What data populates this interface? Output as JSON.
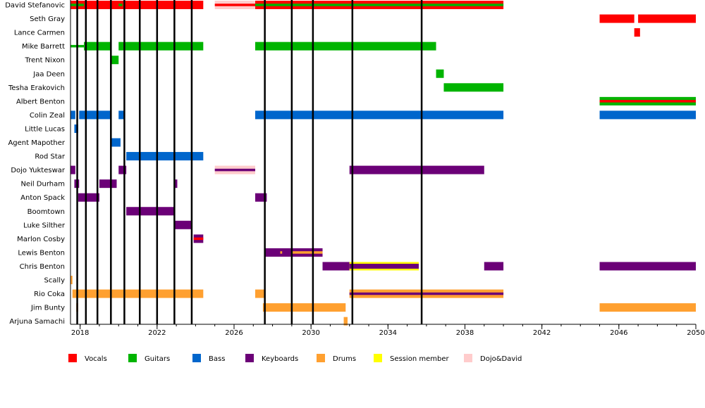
{
  "chart_data": {
    "type": "timeline",
    "xlim": [
      2017.5,
      2050
    ],
    "x_ticks": [
      2018,
      2022,
      2026,
      2030,
      2034,
      2038,
      2042,
      2046,
      2050
    ],
    "x_tick_labels": [
      "2018",
      "2022",
      "2026",
      "2030",
      "2034",
      "2038",
      "2042",
      "2046",
      "2050"
    ],
    "event_lines": [
      2017.85,
      2018.3,
      2018.9,
      2019.6,
      2020.3,
      2021.1,
      2022.0,
      2022.9,
      2023.8,
      2027.6,
      2029.0,
      2030.1,
      2032.15,
      2035.75
    ],
    "colors": {
      "Vocals": "#ff0000",
      "Guitars": "#00b400",
      "Bass": "#0066cc",
      "Keyboards": "#6b0077",
      "Drums": "#ffa030",
      "Session member": "#ffff00",
      "Dojo&David": "#ffcccc"
    },
    "legend": [
      {
        "role": "Vocals",
        "label": "Vocals"
      },
      {
        "role": "Guitars",
        "label": "Guitars"
      },
      {
        "role": "Bass",
        "label": "Bass"
      },
      {
        "role": "Keyboards",
        "label": "Keyboards"
      },
      {
        "role": "Drums",
        "label": "Drums"
      },
      {
        "role": "Session member",
        "label": "Session member"
      },
      {
        "role": "Dojo&David",
        "label": "Dojo&David"
      }
    ],
    "members": [
      {
        "name": "David Stefanovic",
        "bars": [
          {
            "start": 2017.5,
            "end": 2024.4,
            "role": "Vocals"
          },
          {
            "start": 2025.0,
            "end": 2027.1,
            "role": "Dojo&David"
          },
          {
            "start": 2025.0,
            "end": 2027.1,
            "role": "Vocals",
            "thin": true
          },
          {
            "start": 2027.1,
            "end": 2040.0,
            "role": "Vocals"
          },
          {
            "start": 2017.5,
            "end": 2018.2,
            "role": "Guitars",
            "thin": true
          },
          {
            "start": 2020.0,
            "end": 2020.2,
            "role": "Guitars",
            "thin": true
          },
          {
            "start": 2027.1,
            "end": 2040.0,
            "role": "Guitars",
            "thin": true
          }
        ]
      },
      {
        "name": "Seth Gray",
        "bars": [
          {
            "start": 2045.0,
            "end": 2046.8,
            "role": "Vocals"
          },
          {
            "start": 2047.0,
            "end": 2050.0,
            "role": "Vocals"
          }
        ]
      },
      {
        "name": "Lance Carmen",
        "bars": [
          {
            "start": 2046.8,
            "end": 2047.1,
            "role": "Vocals"
          }
        ]
      },
      {
        "name": "Mike Barrett",
        "bars": [
          {
            "start": 2017.5,
            "end": 2018.2,
            "role": "Guitars",
            "thin": true
          },
          {
            "start": 2018.2,
            "end": 2019.6,
            "role": "Guitars"
          },
          {
            "start": 2020.0,
            "end": 2024.4,
            "role": "Guitars"
          },
          {
            "start": 2027.1,
            "end": 2036.5,
            "role": "Guitars"
          }
        ]
      },
      {
        "name": "Trent Nixon",
        "bars": [
          {
            "start": 2019.6,
            "end": 2020.0,
            "role": "Guitars"
          }
        ]
      },
      {
        "name": "Jaa Deen",
        "bars": [
          {
            "start": 2036.5,
            "end": 2036.9,
            "role": "Guitars"
          }
        ]
      },
      {
        "name": "Tesha Erakovich",
        "bars": [
          {
            "start": 2036.9,
            "end": 2040.0,
            "role": "Guitars"
          }
        ]
      },
      {
        "name": "Albert Benton",
        "bars": [
          {
            "start": 2045.0,
            "end": 2050.0,
            "role": "Guitars"
          },
          {
            "start": 2045.0,
            "end": 2050.0,
            "role": "Vocals",
            "thin": true
          }
        ]
      },
      {
        "name": "Colin Zeal",
        "bars": [
          {
            "start": 2017.5,
            "end": 2017.75,
            "role": "Bass"
          },
          {
            "start": 2017.95,
            "end": 2019.6,
            "role": "Bass"
          },
          {
            "start": 2020.0,
            "end": 2020.3,
            "role": "Bass"
          },
          {
            "start": 2027.1,
            "end": 2040.0,
            "role": "Bass"
          },
          {
            "start": 2045.0,
            "end": 2050.0,
            "role": "Bass"
          }
        ]
      },
      {
        "name": "Little Lucas",
        "bars": [
          {
            "start": 2017.7,
            "end": 2017.9,
            "role": "Bass"
          }
        ]
      },
      {
        "name": "Agent Mapother",
        "bars": [
          {
            "start": 2019.6,
            "end": 2020.1,
            "role": "Bass"
          }
        ]
      },
      {
        "name": "Rod Star",
        "bars": [
          {
            "start": 2020.4,
            "end": 2024.4,
            "role": "Bass"
          }
        ]
      },
      {
        "name": "Dojo Yukteswar",
        "bars": [
          {
            "start": 2017.5,
            "end": 2017.75,
            "role": "Keyboards"
          },
          {
            "start": 2020.0,
            "end": 2020.4,
            "role": "Keyboards"
          },
          {
            "start": 2025.0,
            "end": 2027.1,
            "role": "Dojo&David"
          },
          {
            "start": 2025.0,
            "end": 2027.1,
            "role": "Keyboards",
            "thin": true
          },
          {
            "start": 2032.0,
            "end": 2039.0,
            "role": "Keyboards"
          }
        ]
      },
      {
        "name": "Neil Durham",
        "bars": [
          {
            "start": 2017.7,
            "end": 2017.95,
            "role": "Keyboards"
          },
          {
            "start": 2019.0,
            "end": 2019.9,
            "role": "Keyboards"
          },
          {
            "start": 2022.9,
            "end": 2023.05,
            "role": "Keyboards"
          }
        ]
      },
      {
        "name": "Anton Spack",
        "bars": [
          {
            "start": 2017.9,
            "end": 2019.0,
            "role": "Keyboards"
          },
          {
            "start": 2027.1,
            "end": 2027.7,
            "role": "Keyboards"
          }
        ]
      },
      {
        "name": "Boomtown",
        "bars": [
          {
            "start": 2020.4,
            "end": 2022.9,
            "role": "Keyboards"
          }
        ]
      },
      {
        "name": "Luke Silther",
        "bars": [
          {
            "start": 2022.9,
            "end": 2023.8,
            "role": "Keyboards"
          }
        ]
      },
      {
        "name": "Marlon Cosby",
        "bars": [
          {
            "start": 2023.9,
            "end": 2024.4,
            "role": "Keyboards"
          },
          {
            "start": 2023.9,
            "end": 2024.4,
            "role": "Vocals",
            "thin": true
          }
        ]
      },
      {
        "name": "Lewis Benton",
        "bars": [
          {
            "start": 2027.6,
            "end": 2030.6,
            "role": "Keyboards"
          },
          {
            "start": 2029.0,
            "end": 2030.6,
            "role": "Drums",
            "thin": true
          },
          {
            "start": 2028.4,
            "end": 2028.5,
            "role": "Drums",
            "thin": true
          }
        ]
      },
      {
        "name": "Chris Benton",
        "bars": [
          {
            "start": 2030.6,
            "end": 2032.0,
            "role": "Keyboards"
          },
          {
            "start": 2032.0,
            "end": 2035.6,
            "role": "Session member"
          },
          {
            "start": 2032.0,
            "end": 2035.6,
            "role": "Keyboards",
            "inner": true
          },
          {
            "start": 2039.0,
            "end": 2040.0,
            "role": "Keyboards"
          },
          {
            "start": 2045.0,
            "end": 2050.0,
            "role": "Keyboards"
          }
        ]
      },
      {
        "name": "Scally",
        "bars": [
          {
            "start": 2017.5,
            "end": 2017.6,
            "role": "Drums"
          }
        ]
      },
      {
        "name": "Rio Coka",
        "bars": [
          {
            "start": 2017.6,
            "end": 2024.4,
            "role": "Drums"
          },
          {
            "start": 2027.1,
            "end": 2027.6,
            "role": "Drums"
          },
          {
            "start": 2032.0,
            "end": 2040.0,
            "role": "Drums"
          },
          {
            "start": 2032.0,
            "end": 2040.0,
            "role": "Keyboards",
            "thin": true
          }
        ]
      },
      {
        "name": "Jim Bunty",
        "bars": [
          {
            "start": 2017.8,
            "end": 2017.9,
            "role": "Drums"
          },
          {
            "start": 2027.5,
            "end": 2031.8,
            "role": "Drums"
          },
          {
            "start": 2045.0,
            "end": 2050.0,
            "role": "Drums"
          }
        ]
      },
      {
        "name": "Arjuna Samachi",
        "bars": [
          {
            "start": 2031.7,
            "end": 2031.9,
            "role": "Drums"
          }
        ]
      }
    ]
  }
}
